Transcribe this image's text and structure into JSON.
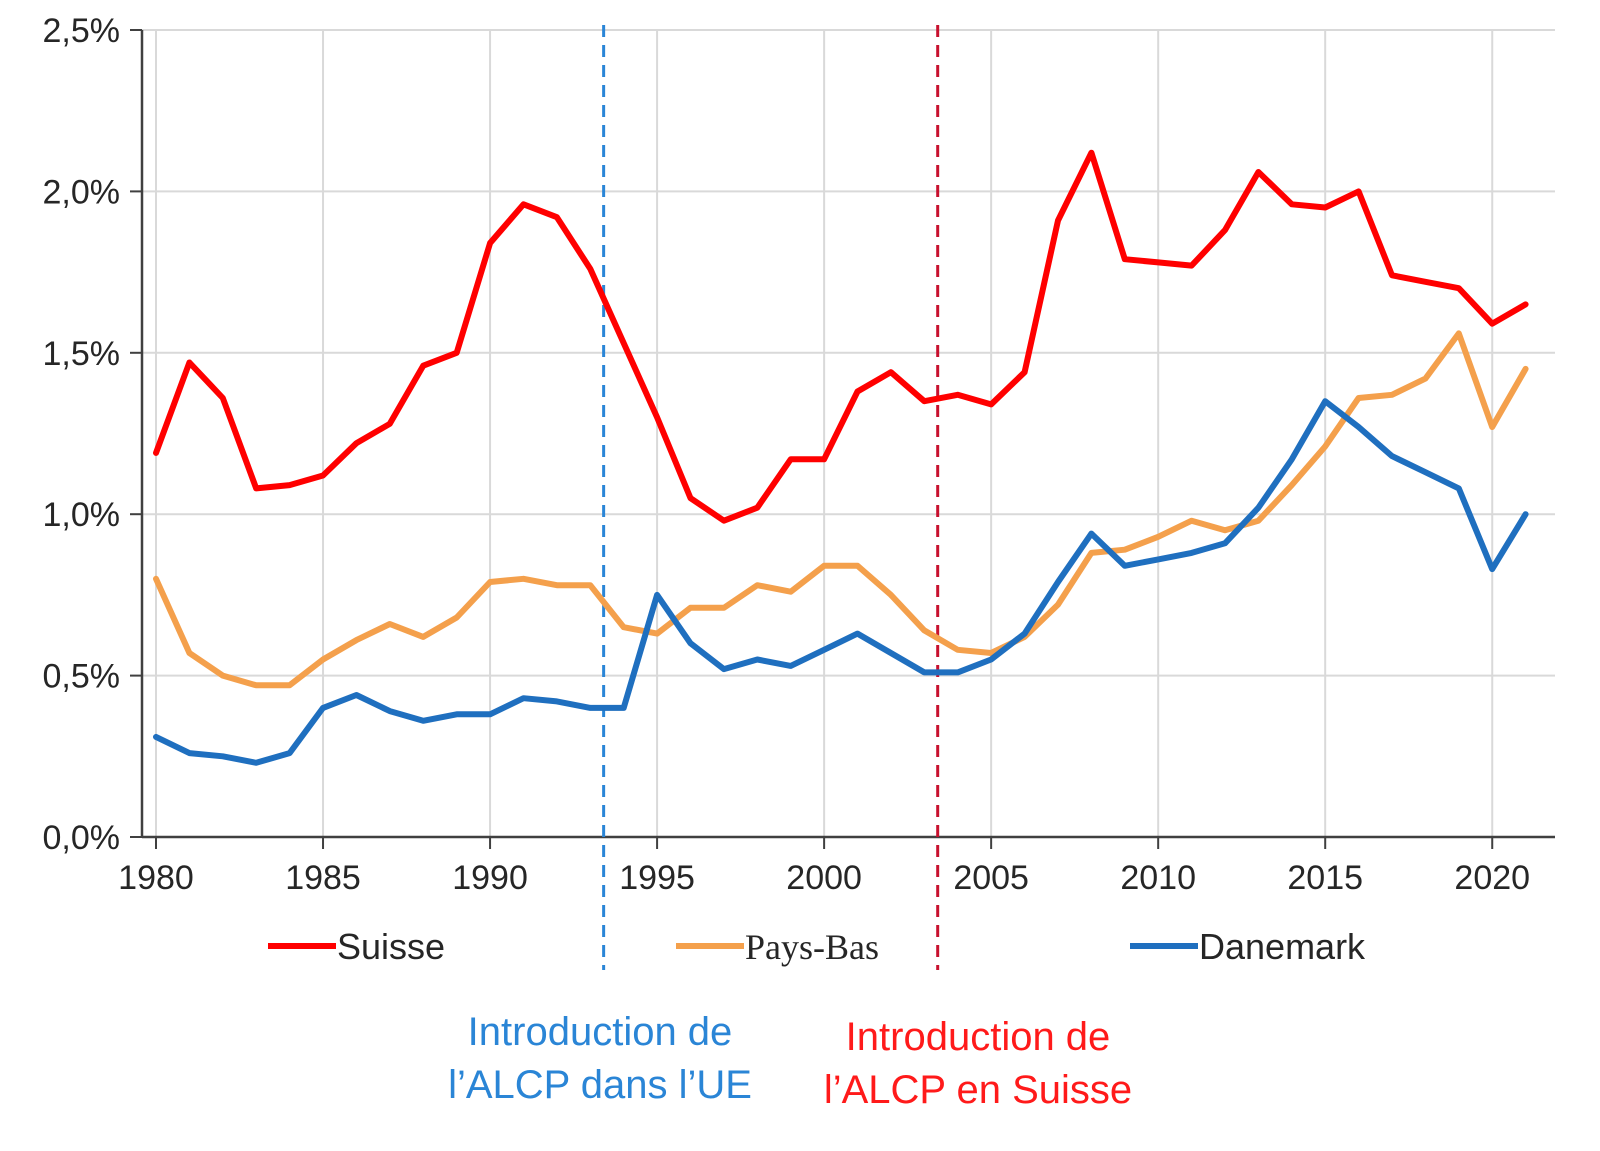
{
  "chart_data": {
    "type": "line",
    "title": "",
    "xlabel": "",
    "ylabel": "",
    "x": [
      1980,
      1981,
      1982,
      1983,
      1984,
      1985,
      1986,
      1987,
      1988,
      1989,
      1990,
      1991,
      1992,
      1993,
      1994,
      1995,
      1996,
      1997,
      1998,
      1999,
      2000,
      2001,
      2002,
      2003,
      2004,
      2005,
      2006,
      2007,
      2008,
      2009,
      2010,
      2011,
      2012,
      2013,
      2014,
      2015,
      2016,
      2017,
      2018,
      2019,
      2020,
      2021
    ],
    "xlim": [
      1980,
      2021.4
    ],
    "ylim": [
      0,
      2.5
    ],
    "grid": true,
    "y_tick_values": [
      0,
      0.5,
      1.0,
      1.5,
      2.0,
      2.5
    ],
    "y_tick_labels": [
      "0,0%",
      "0,5%",
      "1,0%",
      "1,5%",
      "2,0%",
      "2,5%"
    ],
    "x_tick_values": [
      1980,
      1985,
      1990,
      1995,
      2000,
      2005,
      2010,
      2015,
      2020
    ],
    "x_tick_labels": [
      "1980",
      "1985",
      "1990",
      "1995",
      "2000",
      "2005",
      "2010",
      "2015",
      "2020"
    ],
    "legend_position": "bottom",
    "series": [
      {
        "name": "Suisse",
        "color": "#ff0000",
        "values": [
          1.19,
          1.47,
          1.36,
          1.08,
          1.09,
          1.12,
          1.22,
          1.28,
          1.46,
          1.5,
          1.84,
          1.96,
          1.92,
          1.76,
          1.53,
          1.3,
          1.05,
          0.98,
          1.02,
          1.17,
          1.17,
          1.38,
          1.44,
          1.35,
          1.37,
          1.34,
          1.44,
          1.91,
          2.12,
          1.79,
          1.78,
          1.77,
          1.88,
          2.06,
          1.96,
          1.95,
          2.0,
          1.74,
          1.72,
          1.7,
          1.59,
          1.65
        ]
      },
      {
        "name": "Pays-Bas",
        "color": "#f4a04c",
        "values": [
          0.8,
          0.57,
          0.5,
          0.47,
          0.47,
          0.55,
          0.61,
          0.66,
          0.62,
          0.68,
          0.79,
          0.8,
          0.78,
          0.78,
          0.65,
          0.63,
          0.71,
          0.71,
          0.78,
          0.76,
          0.84,
          0.84,
          0.75,
          0.64,
          0.58,
          0.57,
          0.62,
          0.72,
          0.88,
          0.89,
          0.93,
          0.98,
          0.95,
          0.98,
          1.09,
          1.21,
          1.36,
          1.37,
          1.42,
          1.56,
          1.27,
          1.45
        ]
      },
      {
        "name": "Danemark",
        "color": "#1f6fbf",
        "values": [
          0.31,
          0.26,
          0.25,
          0.23,
          0.26,
          0.4,
          0.44,
          0.39,
          0.36,
          0.38,
          0.38,
          0.43,
          0.42,
          0.4,
          0.4,
          0.75,
          0.6,
          0.52,
          0.55,
          0.53,
          0.58,
          0.63,
          0.57,
          0.51,
          0.51,
          0.55,
          0.63,
          0.79,
          0.94,
          0.84,
          0.86,
          0.88,
          0.91,
          1.02,
          1.17,
          1.35,
          1.27,
          1.18,
          1.13,
          1.08,
          0.83,
          1.0
        ]
      }
    ],
    "vertical_markers": [
      {
        "x": 1993.4,
        "color": "#2a85d6",
        "style": "dashed",
        "label_lines": [
          "Introduction de",
          "l’ALCP dans l’UE"
        ]
      },
      {
        "x": 2003.4,
        "color": "#c8102e",
        "style": "dashed",
        "label_lines": [
          "Introduction de",
          "l’ALCP en Suisse"
        ]
      }
    ],
    "annotation_colors": [
      "#2a85d6",
      "#ff1a1a"
    ]
  }
}
